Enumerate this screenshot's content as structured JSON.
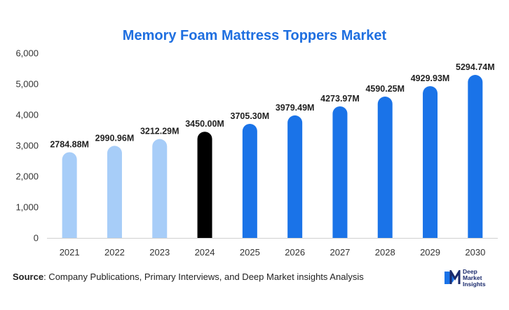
{
  "chart_data": {
    "type": "bar",
    "title": "Memory Foam Mattress Toppers Market",
    "categories": [
      "2021",
      "2022",
      "2023",
      "2024",
      "2025",
      "2026",
      "2027",
      "2028",
      "2029",
      "2030"
    ],
    "values": [
      2784.88,
      2990.96,
      3212.29,
      3450.0,
      3705.3,
      3979.49,
      4273.97,
      4590.25,
      4929.93,
      5294.74
    ],
    "data_labels": [
      "2784.88M",
      "2990.96M",
      "3212.29M",
      "3450.00M",
      "3705.30M",
      "3979.49M",
      "4273.97M",
      "4590.25M",
      "4929.93M",
      "5294.74M"
    ],
    "bar_colors": [
      "#a7cdf8",
      "#a7cdf8",
      "#a7cdf8",
      "#000000",
      "#1a73e8",
      "#1a73e8",
      "#1a73e8",
      "#1a73e8",
      "#1a73e8",
      "#1a73e8"
    ],
    "yticks": [
      0,
      1000,
      2000,
      3000,
      4000,
      5000,
      6000
    ],
    "ytick_labels": [
      "0",
      "1,000",
      "2,000",
      "3,000",
      "4,000",
      "5,000",
      "6,000"
    ],
    "ylim": [
      0,
      6000
    ],
    "xlabel": "",
    "ylabel": "",
    "grid": false,
    "legend": "none"
  },
  "source": {
    "label": "Source",
    "text": ": Company Publications, Primary Interviews, and Deep Market insights Analysis"
  },
  "logo": {
    "mark": "DM",
    "line1": "Deep",
    "line2": "Market",
    "line3": "Insights",
    "colors": {
      "d": "#1a73e8",
      "m": "#1a2a6c"
    }
  }
}
